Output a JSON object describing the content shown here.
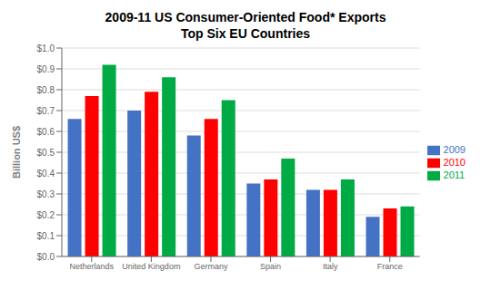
{
  "chart_data": {
    "type": "bar",
    "title": "2009-11 US Consumer-Oriented Food* Exports\nTop Six EU Countries",
    "ylabel": "Billion US$",
    "categories": [
      "Netherlands",
      "United Kingdom",
      "Germany",
      "Spain",
      "Italy",
      "France"
    ],
    "series": [
      {
        "name": "2009",
        "color": "#4472C4",
        "values": [
          0.66,
          0.7,
          0.58,
          0.35,
          0.32,
          0.19
        ]
      },
      {
        "name": "2010",
        "color": "#FF0000",
        "values": [
          0.77,
          0.79,
          0.66,
          0.37,
          0.32,
          0.23
        ]
      },
      {
        "name": "2011",
        "color": "#00AA44",
        "values": [
          0.92,
          0.86,
          0.75,
          0.47,
          0.37,
          0.24
        ]
      }
    ],
    "ylim": [
      0,
      1.0
    ],
    "yticks": [
      {
        "value": 0.0,
        "label": "$0.0"
      },
      {
        "value": 0.1,
        "label": "$0.1"
      },
      {
        "value": 0.2,
        "label": "$0.2"
      },
      {
        "value": 0.3,
        "label": "$0.3"
      },
      {
        "value": 0.4,
        "label": "$0.4"
      },
      {
        "value": 0.5,
        "label": "$0.5"
      },
      {
        "value": 0.6,
        "label": "$0.6"
      },
      {
        "value": 0.7,
        "label": "$0.7"
      },
      {
        "value": 0.8,
        "label": "$0.8"
      },
      {
        "value": 0.9,
        "label": "$0.9"
      },
      {
        "value": 1.0,
        "label": "$1.0"
      }
    ],
    "grid": true,
    "legend": "right"
  }
}
